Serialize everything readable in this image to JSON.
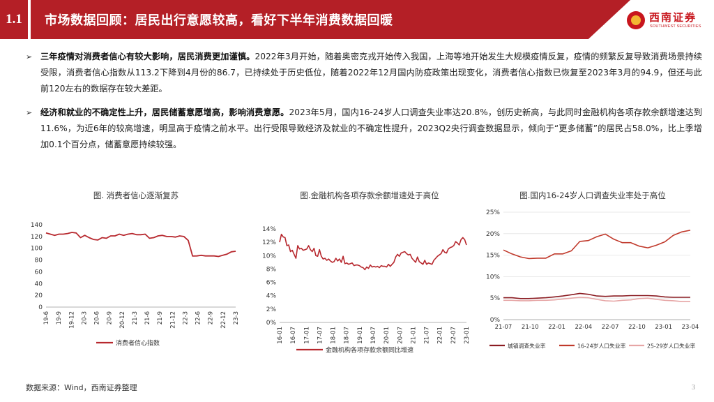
{
  "header": {
    "section_number": "1.1",
    "title": "市场数据回顾：居民出行意愿较高，看好下半年消费数据回暖",
    "logo_cn": "西南证券",
    "logo_en": "SOUTHWEST SECURITIES",
    "brand_color": "#b41f26"
  },
  "paragraphs": [
    {
      "bullet": "➢",
      "bold": "三年疫情对消费者信心有较大影响，居民消费更加谨慎。",
      "text": "2022年3月开始，随着奥密克戎开始传入我国，上海等地开始发生大规模疫情反复，疫情的频繁反复导致消费场景持续受限，消费者信心指数从113.2下降到4月份的86.7，已持续处于历史低位，随着2022年12月国内防疫政策出现变化，消费者信心指数已恢复至2023年3月的94.9，但还与此前120左右的数据存在较大差距。"
    },
    {
      "bullet": "➢",
      "bold": "经济和就业的不确定性上升，居民储蓄意愿增高，影响消费意愿。",
      "text": "2023年5月，国内16-24岁人口调查失业率达20.8%，创历史新高，与此同时金融机构各项存款余额增速达到11.6%，为近6年的较高增速，明显高于疫情之前水平。出行受限导致经济及就业的不确定性提升，2023Q2央行调查数据显示，倾向于“更多储蓄”的居民占58.0%，比上季增加0.1个百分点，储蓄意愿持续较强。"
    }
  ],
  "chart_data": [
    {
      "type": "line",
      "title": "图. 消费者信心逐渐复苏",
      "x_ticks": [
        "19-6",
        "19-9",
        "19-12",
        "20-3",
        "20-6",
        "20-9",
        "20-12",
        "21-3",
        "21-6",
        "21-9",
        "21-12",
        "22-3",
        "22-6",
        "22-9",
        "22-12",
        "23-3"
      ],
      "ylim": [
        0,
        140
      ],
      "y_ticks": [
        0,
        20,
        40,
        60,
        80,
        100,
        120,
        140
      ],
      "series": [
        {
          "name": "消费者信心指数",
          "color": "#b7282e",
          "values": [
            126,
            124,
            122,
            124,
            124,
            125,
            127,
            126,
            118,
            122,
            118,
            115,
            114,
            118,
            117,
            121,
            121,
            124,
            122,
            124,
            125,
            123,
            123,
            124,
            117,
            118,
            121,
            122,
            120,
            120,
            119,
            121,
            120,
            113.2,
            86.7,
            87,
            88,
            87,
            87,
            87,
            86,
            88,
            90,
            94,
            94.9
          ]
        }
      ]
    },
    {
      "type": "line",
      "title": "图.金融机构各项存款余额增速处于高位",
      "x_ticks": [
        "16-01",
        "16-07",
        "17-01",
        "17-07",
        "18-01",
        "18-07",
        "19-01",
        "19-07",
        "20-01",
        "20-07",
        "21-01",
        "21-07",
        "22-01",
        "22-07",
        "23-01"
      ],
      "ylim": [
        0,
        14
      ],
      "y_ticks": [
        "0%",
        "2%",
        "4%",
        "6%",
        "8%",
        "10%",
        "12%",
        "14%"
      ],
      "series": [
        {
          "name": "金融机构各项存款余额同比增速",
          "color": "#b7282e",
          "values": [
            12.0,
            13.2,
            12.8,
            12.7,
            11.5,
            11.6,
            10.6,
            10.8,
            10.2,
            9.6,
            11.5,
            11.0,
            11.1,
            10.8,
            10.9,
            11.0,
            11.5,
            10.9,
            10.6,
            11.1,
            10.0,
            9.9,
            10.9,
            9.9,
            9.5,
            9.6,
            9.3,
            9.5,
            9.2,
            9.0,
            9.1,
            9.6,
            9.2,
            9.5,
            9.0,
            9.9,
            8.8,
            8.9,
            8.7,
            8.8,
            8.9,
            8.5,
            8.6,
            8.6,
            8.5,
            8.3,
            8.2,
            7.9,
            8.3,
            8.1,
            8.6,
            8.3,
            8.4,
            8.3,
            8.4,
            8.2,
            8.5,
            8.4,
            8.4,
            8.3,
            8.7,
            8.4,
            8.7,
            9.0,
            9.8,
            10.2,
            9.9,
            10.4,
            10.5,
            10.6,
            10.3,
            10.1,
            10.2,
            9.6,
            9.3,
            9.0,
            9.8,
            9.1,
            8.9,
            8.7,
            9.3,
            8.7,
            8.9,
            8.8,
            8.7,
            9.3,
            9.6,
            9.9,
            10.1,
            10.3,
            10.9,
            10.5,
            10.4,
            11.0,
            11.2,
            11.3,
            11.5,
            12.1,
            11.9,
            11.6,
            12.4,
            12.7,
            12.4,
            11.6
          ]
        }
      ]
    },
    {
      "type": "line",
      "title": "图.国内16-24岁人口调查失业率处于高位",
      "x_ticks": [
        "21-07",
        "21-10",
        "22-01",
        "22-04",
        "22-07",
        "22-10",
        "23-01",
        "23-04"
      ],
      "ylim": [
        0,
        25
      ],
      "y_ticks": [
        "0%",
        "5%",
        "10%",
        "15%",
        "20%",
        "25%"
      ],
      "series": [
        {
          "name": "城镇调查失业率",
          "color": "#8b1c22",
          "values": [
            5.1,
            5.1,
            4.9,
            4.9,
            5.0,
            5.1,
            5.3,
            5.5,
            5.8,
            6.1,
            5.9,
            5.5,
            5.4,
            5.5,
            5.5,
            5.6,
            5.6,
            5.6,
            5.5,
            5.3,
            5.2,
            5.2,
            5.2
          ]
        },
        {
          "name": "16-24岁人口失业率",
          "color": "#c0392b",
          "values": [
            16.2,
            15.3,
            14.6,
            14.2,
            14.3,
            14.3,
            15.3,
            15.3,
            16.0,
            18.2,
            18.4,
            19.3,
            19.9,
            18.7,
            17.9,
            17.9,
            17.1,
            16.7,
            17.3,
            18.1,
            19.6,
            20.4,
            20.8
          ]
        },
        {
          "name": "25-29岁人口失业率",
          "color": "#e6a5a5",
          "values": [
            4.5,
            4.5,
            4.4,
            4.4,
            4.5,
            4.5,
            4.6,
            4.8,
            5.0,
            5.2,
            5.1,
            4.7,
            4.4,
            4.3,
            4.5,
            4.6,
            4.9,
            5.0,
            4.7,
            4.5,
            4.4,
            4.2,
            4.2
          ]
        }
      ]
    }
  ],
  "footer": {
    "source": "数据来源：Wind，西南证券整理",
    "page": "3"
  }
}
